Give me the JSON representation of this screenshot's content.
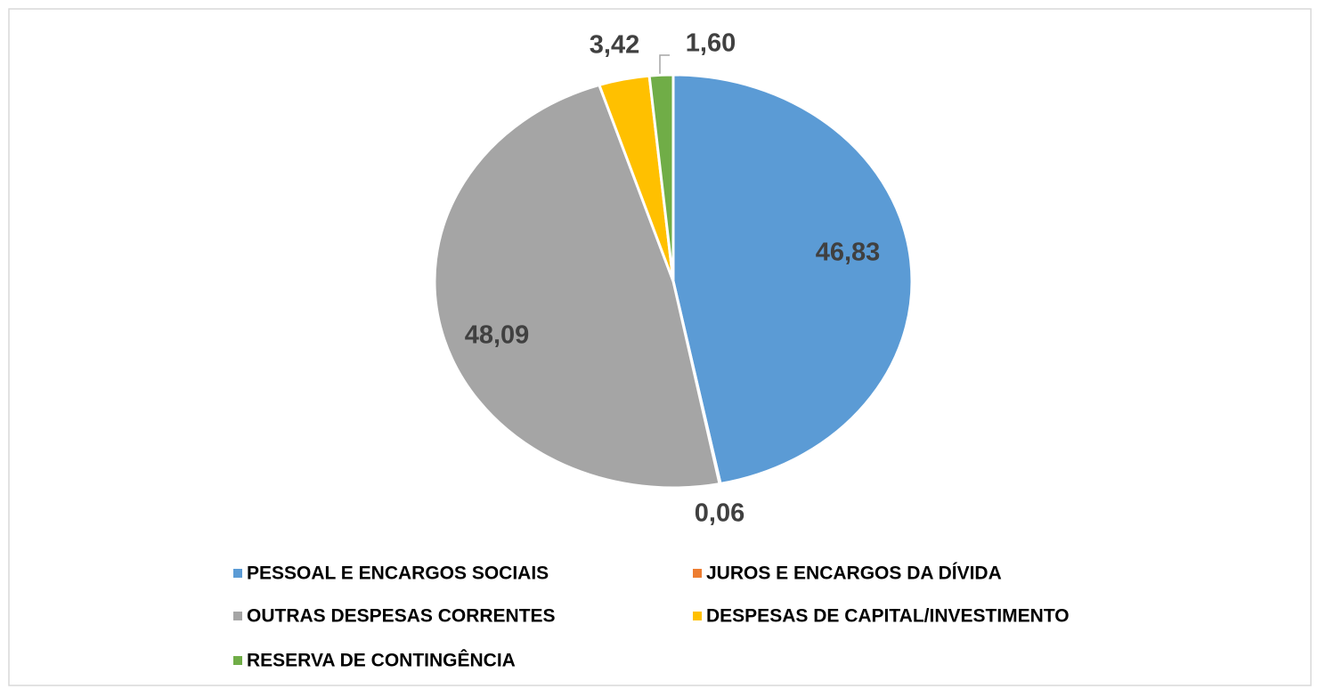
{
  "chart_data": {
    "type": "pie",
    "categories": [
      "PESSOAL E ENCARGOS SOCIAIS",
      "JUROS E ENCARGOS DA DÍVIDA",
      "OUTRAS DESPESAS CORRENTES",
      "DESPESAS DE CAPITAL/INVESTIMENTO",
      "RESERVA DE CONTINGÊNCIA"
    ],
    "values": [
      46.83,
      0.06,
      48.09,
      3.42,
      1.6
    ],
    "value_labels": [
      "46,83",
      "0,06",
      "48,09",
      "3,42",
      "1,60"
    ],
    "colors": [
      "#5b9bd5",
      "#ed7d31",
      "#a5a5a5",
      "#ffc000",
      "#70ad47"
    ],
    "legend": "bottom"
  }
}
